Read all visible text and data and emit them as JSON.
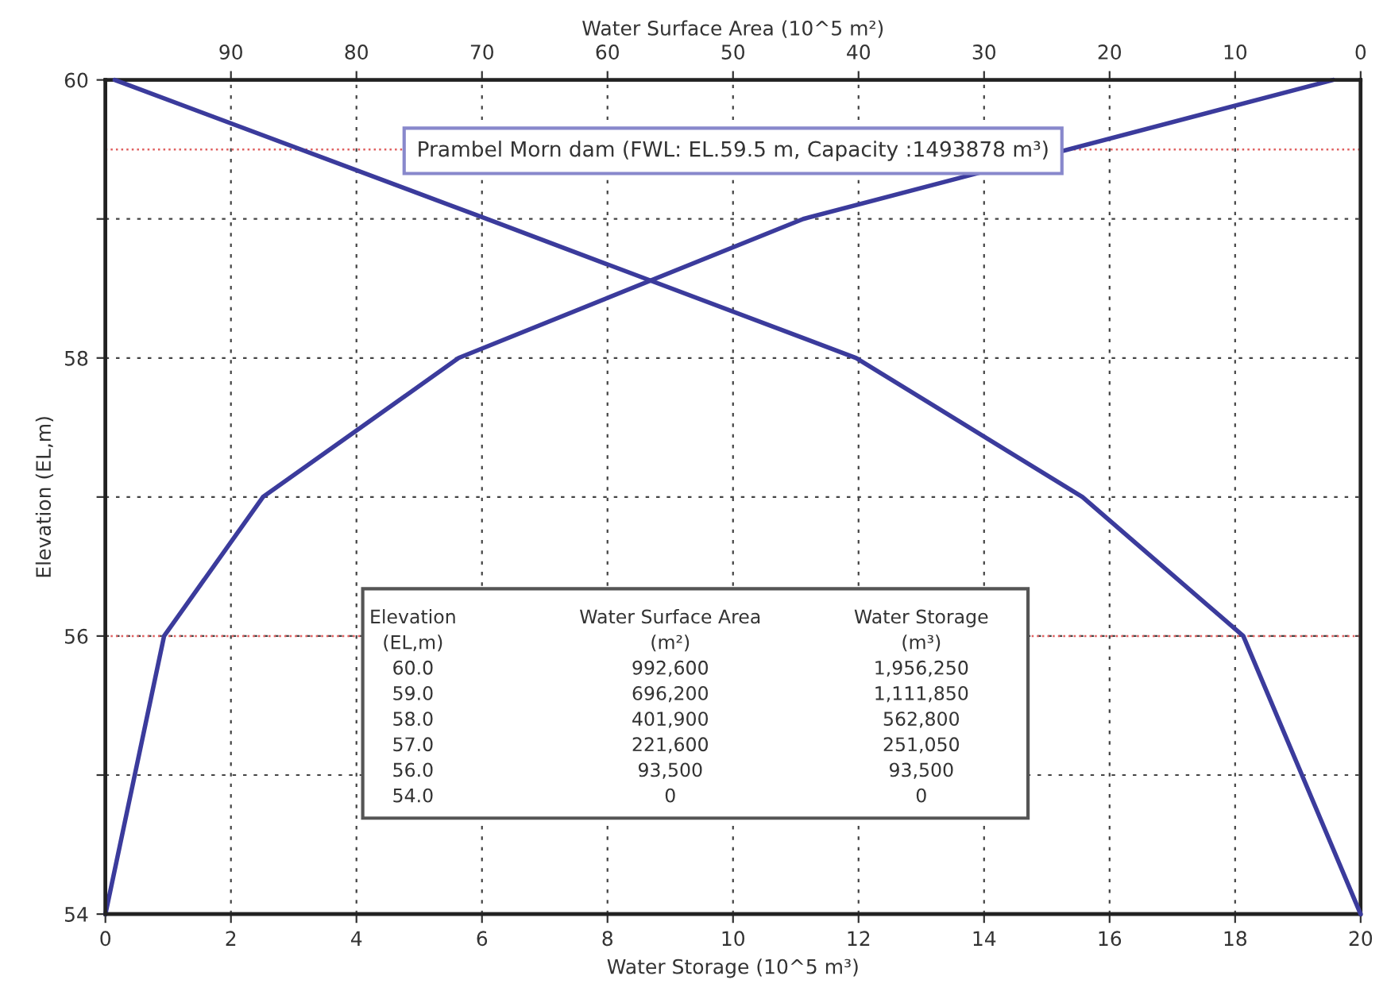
{
  "chart_data": {
    "type": "line",
    "xlabel": "Water Storage (10^5 m³)",
    "x2label": "Water Surface Area (10^5 m²)",
    "ylabel": "Elevation (EL,m)",
    "xlim": [
      0,
      20
    ],
    "xticks": [
      0,
      2,
      4,
      6,
      8,
      10,
      12,
      14,
      16,
      18,
      20
    ],
    "x2lim": [
      100,
      0
    ],
    "x2ticks": [
      90,
      80,
      70,
      60,
      50,
      40,
      30,
      20,
      10,
      0
    ],
    "ylim": [
      54,
      60
    ],
    "yticks": [
      54,
      {
        "value": 55,
        "label": null
      },
      56,
      {
        "value": 57,
        "label": null
      },
      58,
      {
        "value": 59,
        "label": null
      },
      60
    ],
    "grid": true,
    "marker": "none",
    "line_style": "solid",
    "series": [
      {
        "color": "#3b3b9c",
        "x": [
          0,
          0.935,
          2.5105,
          5.628,
          11.1185,
          19.5625
        ],
        "values": [
          54,
          56,
          57,
          58,
          59,
          60
        ]
      },
      {
        "color": "#3b3b9c",
        "axis": "x2",
        "x": [
          0,
          9.35,
          22.16,
          40.19,
          69.62,
          99.26
        ],
        "values": [
          54,
          56,
          57,
          58,
          59,
          60
        ]
      }
    ],
    "ref_lines": [
      {
        "axis": "y",
        "value": 59.5,
        "color": "#e06060",
        "line_style": "dotted"
      },
      {
        "axis": "y",
        "value": 56,
        "color": "#e06060",
        "line_style": "dotted"
      }
    ],
    "annotations": [
      "Prambel Morn dam (FWL: EL.59.5 m, Capacity :1493878 m³)",
      "Elevation",
      "Water Surface Area",
      "Water Storage",
      "(EL,m)",
      "(m²)",
      "(m³)",
      "60.0",
      "992,600",
      "1,956,250",
      "59.0",
      "696,200",
      "1,111,850",
      "58.0",
      "401,900",
      "562,800",
      "57.0",
      "221,600",
      "251,050",
      "56.0",
      "93,500",
      "93,500",
      "54.0",
      "0",
      "0"
    ]
  }
}
